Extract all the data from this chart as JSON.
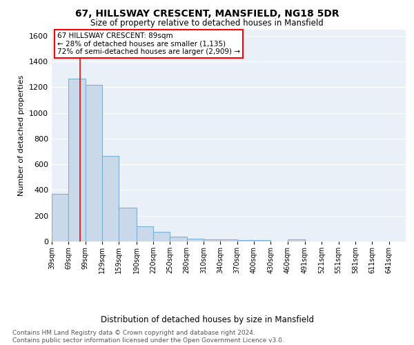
{
  "title1": "67, HILLSWAY CRESCENT, MANSFIELD, NG18 5DR",
  "title2": "Size of property relative to detached houses in Mansfield",
  "xlabel": "Distribution of detached houses by size in Mansfield",
  "ylabel": "Number of detached properties",
  "footer": "Contains HM Land Registry data © Crown copyright and database right 2024.\nContains public sector information licensed under the Open Government Licence v3.0.",
  "annotation_title": "67 HILLSWAY CRESCENT: 89sqm",
  "annotation_line2": "← 28% of detached houses are smaller (1,135)",
  "annotation_line3": "72% of semi-detached houses are larger (2,909) →",
  "bar_color": "#c9d9ea",
  "bar_edge_color": "#7bafd4",
  "background_color": "#eaf0f8",
  "red_line_x": 89,
  "categories": [
    "39sqm",
    "69sqm",
    "99sqm",
    "129sqm",
    "159sqm",
    "190sqm",
    "220sqm",
    "250sqm",
    "280sqm",
    "310sqm",
    "340sqm",
    "370sqm",
    "400sqm",
    "430sqm",
    "460sqm",
    "491sqm",
    "521sqm",
    "551sqm",
    "581sqm",
    "611sqm",
    "641sqm"
  ],
  "values": [
    370,
    1265,
    1220,
    665,
    265,
    120,
    73,
    35,
    22,
    15,
    14,
    12,
    10,
    0,
    18,
    0,
    0,
    0,
    0,
    0,
    0
  ],
  "bin_edges": [
    39,
    69,
    99,
    129,
    159,
    190,
    220,
    250,
    280,
    310,
    340,
    370,
    400,
    430,
    460,
    491,
    521,
    551,
    581,
    611,
    641,
    671
  ],
  "ylim": [
    0,
    1650
  ],
  "yticks": [
    0,
    200,
    400,
    600,
    800,
    1000,
    1200,
    1400,
    1600
  ]
}
